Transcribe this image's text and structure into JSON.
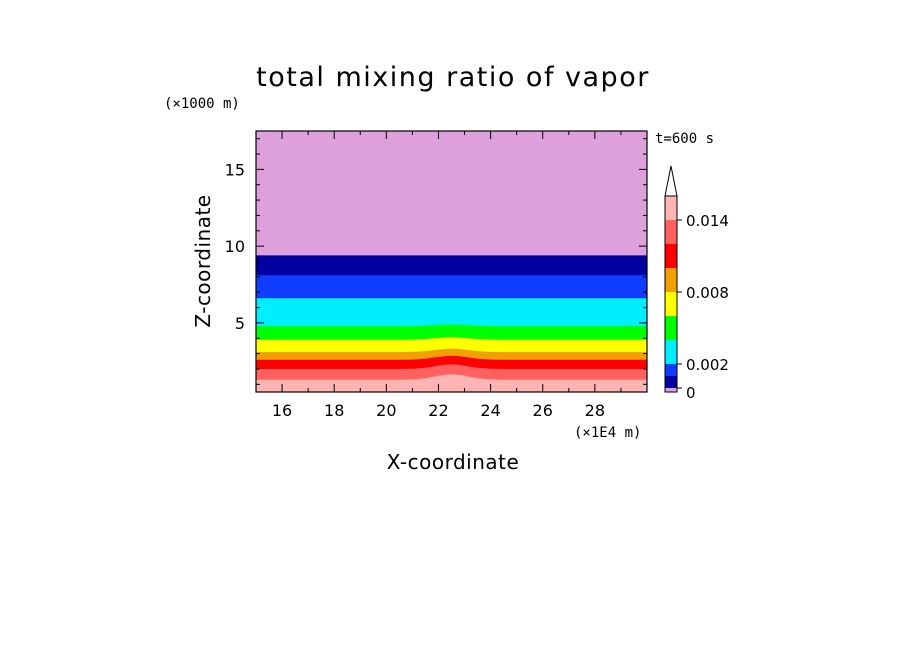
{
  "chart_data": {
    "type": "heatmap",
    "title": "total mixing ratio of vapor",
    "xlabel": "X-coordinate",
    "ylabel": "Z-coordinate",
    "x_unit": "(×1E4 m)",
    "y_unit": "(×1000 m)",
    "time_label": "t=600 s",
    "xlim": [
      15,
      30
    ],
    "ylim": [
      0.5,
      17.5
    ],
    "x_ticks": [
      16,
      18,
      20,
      22,
      24,
      26,
      28
    ],
    "y_ticks": [
      5,
      10,
      15
    ],
    "colorbar": {
      "levels": [
        0,
        0.001,
        0.002,
        0.004,
        0.006,
        0.008,
        0.01,
        0.012,
        0.014,
        0.016
      ],
      "tick_labels": [
        "0",
        "0.002",
        "0.008",
        "0.014"
      ],
      "tick_values": [
        0,
        0.002,
        0.008,
        0.014
      ],
      "colors": [
        "#dda0dd",
        "#0000a0",
        "#0f3cff",
        "#00eeff",
        "#00ff00",
        "#ffff00",
        "#f0a000",
        "#ff0000",
        "#ff6060",
        "#ffb4b4"
      ],
      "extend": "max"
    },
    "bands": [
      {
        "color": "#ffb4b4",
        "z_bottom": 0.5,
        "z_top": 1.3
      },
      {
        "color": "#ff6060",
        "z_bottom": 1.3,
        "z_top": 2.0
      },
      {
        "color": "#ff0000",
        "z_bottom": 2.0,
        "z_top": 2.6
      },
      {
        "color": "#f0a000",
        "z_bottom": 2.6,
        "z_top": 3.1
      },
      {
        "color": "#ffff00",
        "z_bottom": 3.1,
        "z_top": 3.9
      },
      {
        "color": "#00ff00",
        "z_bottom": 3.9,
        "z_top": 4.8
      },
      {
        "color": "#00eeff",
        "z_bottom": 4.8,
        "z_top": 6.6
      },
      {
        "color": "#0f3cff",
        "z_bottom": 6.6,
        "z_top": 8.1
      },
      {
        "color": "#0000a0",
        "z_bottom": 8.1,
        "z_top": 9.4
      },
      {
        "color": "#dda0dd",
        "z_bottom": 9.4,
        "z_top": 17.5
      }
    ],
    "perturbation": {
      "x_center": 22.5,
      "x_half_width": 0.9,
      "z_amplitude": 0.45
    }
  }
}
